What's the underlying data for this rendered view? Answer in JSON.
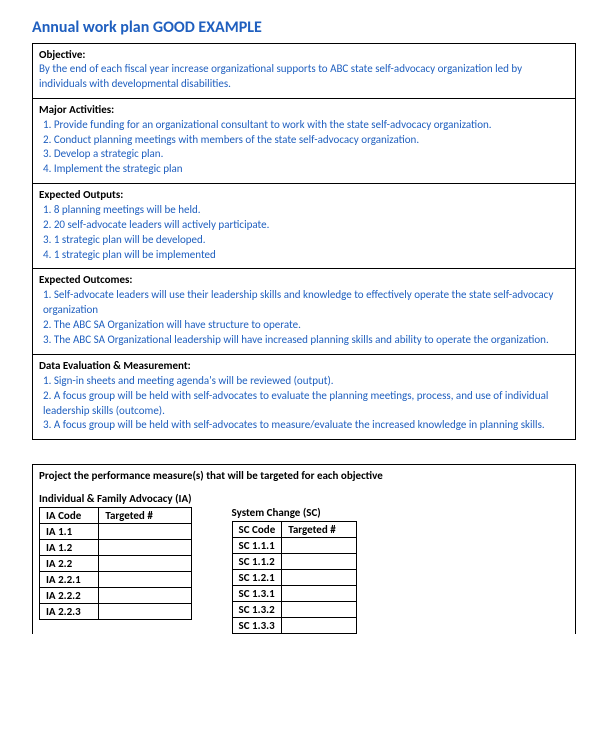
{
  "title": "Annual work plan GOOD EXAMPLE",
  "sections": {
    "objective": {
      "head": "Objective:",
      "body": "By the end of each fiscal year increase organizational supports to ABC state self-advocacy organization led by individuals with developmental disabilities."
    },
    "activities": {
      "head": "Major Activities:",
      "items": [
        "1.  Provide funding for an organizational consultant to work with the state self-advocacy organization.",
        "2.  Conduct planning meetings with members of the state self-advocacy organization.",
        "3.  Develop a strategic plan.",
        "4.  Implement the strategic plan"
      ]
    },
    "outputs": {
      "head": "Expected Outputs:",
      "items": [
        "1.  8 planning meetings will be held.",
        "2.  20 self-advocate leaders will actively participate.",
        "3.  1 strategic plan will be developed.",
        "4. 1 strategic plan will be implemented"
      ]
    },
    "outcomes": {
      "head": "Expected Outcomes:",
      "items": [
        "1.  Self-advocate leaders will use their leadership skills and knowledge to effectively operate the state self-advocacy organization",
        "2.  The ABC SA Organization will have structure to operate.",
        "3.  The ABC SA Organizational leadership will have increased planning skills and ability to operate the organization."
      ]
    },
    "evaluation": {
      "head": "Data Evaluation & Measurement:",
      "items": [
        "1.  Sign-in sheets and meeting agenda's will be reviewed (output).",
        "2.  A focus group will be held with self-advocates to evaluate the planning meetings, process, and use of individual leadership skills (outcome).",
        "3.  A focus group will be held with self-advocates to measure/evaluate the increased knowledge in planning skills."
      ]
    }
  },
  "perf": {
    "title": "Project the performance measure(s) that will be targeted for each objective",
    "ia": {
      "title": "Individual & Family Advocacy (IA)",
      "header_code": "IA  Code",
      "header_targ": "Targeted  #",
      "codes": [
        "IA 1.1",
        "IA 1.2",
        "IA 2.2",
        "IA 2.2.1",
        "IA 2.2.2",
        "IA 2.2.3"
      ]
    },
    "sc": {
      "title": "System Change (SC)",
      "header_code": "SC  Code",
      "header_targ": "Targeted  #",
      "codes": [
        "SC 1.1.1",
        "SC 1.1.2",
        "SC 1.2.1",
        "SC 1.3.1",
        "SC 1.3.2",
        "SC 1.3.3"
      ]
    }
  }
}
